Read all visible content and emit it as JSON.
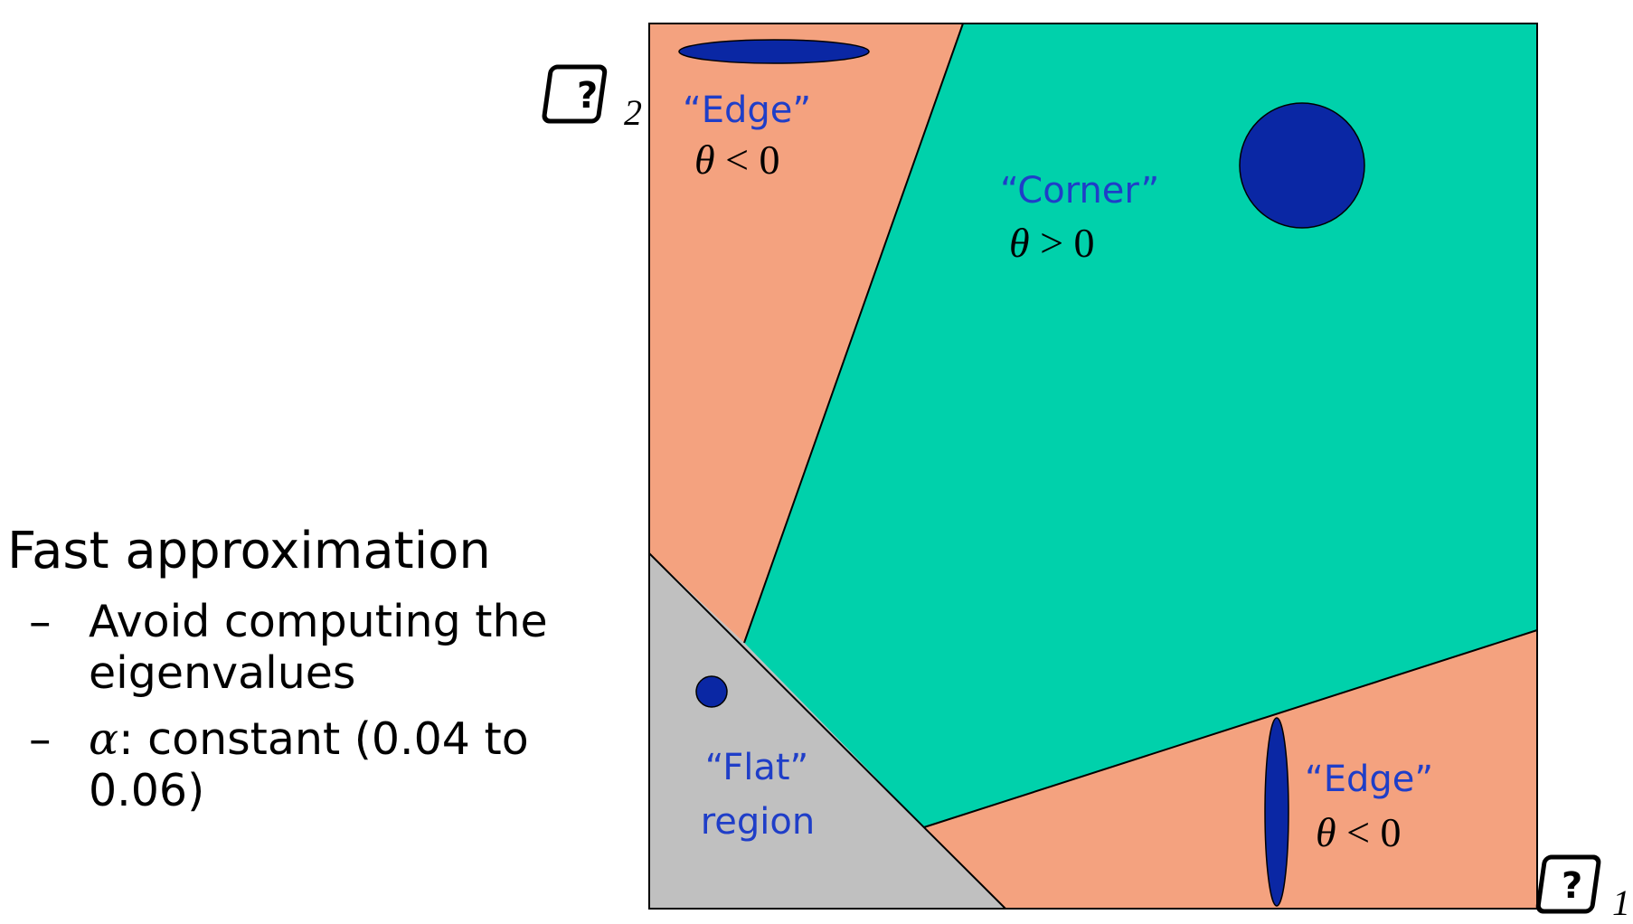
{
  "colors": {
    "edge_region": "#f4a27f",
    "corner_region": "#00d1ab",
    "flat_region": "#c0c0c0",
    "ellipse_fill": "#0a27a4",
    "label_blue": "#1f3ec8"
  },
  "bullets": {
    "main": "Fast approximation",
    "sub": [
      {
        "dash": "–",
        "text": "Avoid computing the eigenvalues"
      },
      {
        "dash": "–",
        "symbol": "α",
        "text": ": constant (0.04 to 0.06)"
      }
    ]
  },
  "diagram": {
    "axis_y": {
      "icon": "question-box-icon",
      "glyph": "?",
      "subscript": "2"
    },
    "axis_x": {
      "icon": "question-box-icon",
      "glyph": "?",
      "subscript": "1"
    },
    "regions": {
      "edge_top": {
        "label": "“Edge”",
        "theta": "θ",
        "relation": "< 0"
      },
      "corner": {
        "label": "“Corner”",
        "theta": "θ",
        "relation": "> 0"
      },
      "edge_bottom": {
        "label": "“Edge”",
        "theta": "θ",
        "relation": "< 0"
      },
      "flat": {
        "label_line1": "“Flat”",
        "label_line2": "region"
      }
    }
  }
}
